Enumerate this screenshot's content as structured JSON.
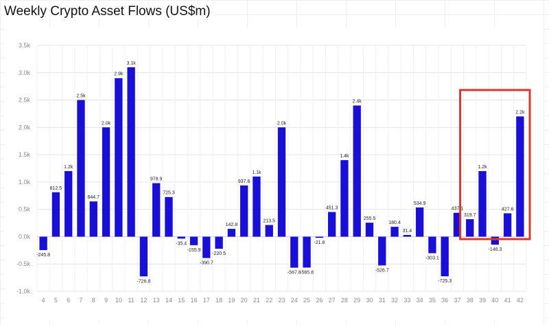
{
  "title": "Weekly Crypto Asset Flows (US$m)",
  "chart_data": {
    "type": "bar",
    "title": "Weekly Crypto Asset Flows (US$m)",
    "xlabel": "",
    "ylabel": "",
    "ylim": [
      -1000,
      3500
    ],
    "yticks": [
      -1000,
      -500,
      0,
      500,
      1000,
      1500,
      2000,
      2500,
      3000,
      3500
    ],
    "ytick_labels": [
      "-1.0k",
      "-0.5k",
      "0.0k",
      "0.5k",
      "1.0k",
      "1.5k",
      "2.0k",
      "2.5k",
      "3.0k",
      "3.5k"
    ],
    "categories": [
      "4",
      "5",
      "6",
      "7",
      "8",
      "9",
      "10",
      "11",
      "12",
      "13",
      "14",
      "15",
      "16",
      "17",
      "18",
      "19",
      "20",
      "21",
      "22",
      "23",
      "24",
      "25",
      "26",
      "27",
      "28",
      "29",
      "30",
      "31",
      "32",
      "33",
      "34",
      "35",
      "36",
      "37",
      "38",
      "39",
      "40",
      "41",
      "42"
    ],
    "values": [
      -245.8,
      812.5,
      1200,
      2500,
      644.7,
      2000,
      2900,
      3100,
      -726.8,
      978.9,
      725.3,
      -35.4,
      -155.9,
      -390.7,
      -220.5,
      142.8,
      937.6,
      1100,
      213.5,
      2000,
      -567.8,
      -565.8,
      -21.8,
      451.3,
      1400,
      2400,
      255.5,
      -526.7,
      180.4,
      31.4,
      534.9,
      -303.1,
      -725.3,
      437.1,
      319.7,
      1200,
      -146.3,
      427.6,
      2200
    ],
    "data_labels": [
      "-245.8",
      "812.5",
      "1.2k",
      "2.5k",
      "644.7",
      "2.0k",
      "2.9k",
      "3.1k",
      "-726.8",
      "978.9",
      "725.3",
      "-35.4",
      "-155.9",
      "-390.7",
      "-220.5",
      "142.8",
      "937.6",
      "1.1k",
      "213.5",
      "2.0k",
      "-567.8",
      "-565.8",
      "-21.8",
      "451.3",
      "1.4k",
      "2.4k",
      "255.5",
      "-526.7",
      "180.4",
      "31.4",
      "534.9",
      "-303.1",
      "-725.3",
      "437.1",
      "319.7",
      "1.2k",
      "-146.3",
      "427.6",
      "2.2k"
    ],
    "grid": true,
    "bar_color": "#1a0fd6",
    "highlight": {
      "from_category": "38",
      "to_category": "42",
      "color": "#d63a2c"
    }
  }
}
